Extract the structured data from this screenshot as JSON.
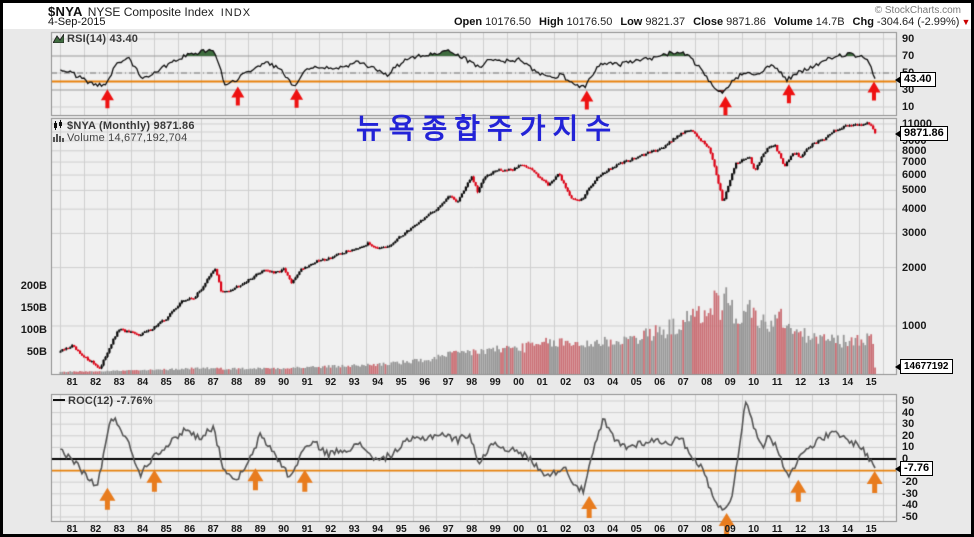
{
  "header": {
    "symbol": "$NYA",
    "name": "NYSE Composite Index",
    "exchange": "INDX",
    "credit": "© StockCharts.com",
    "date": "4-Sep-2015",
    "quote": [
      {
        "label": "Open",
        "value": "10176.50"
      },
      {
        "label": "High",
        "value": "10176.50"
      },
      {
        "label": "Low",
        "value": "9821.37"
      },
      {
        "label": "Close",
        "value": "9871.86"
      },
      {
        "label": "Volume",
        "value": "14.7B"
      },
      {
        "label": "Chg",
        "value": "-304.64 (-2.99%)"
      }
    ],
    "chg_marker": "▼"
  },
  "annotation": {
    "text": "뉴욕종합주가지수"
  },
  "rsi_panel": {
    "label": "RSI(14) 43.40",
    "value_box": "43.40"
  },
  "price_panel": {
    "label": "$NYA (Monthly) 9871.86",
    "volume_label": "Volume 14,677,192,704",
    "value_box": "9871.86",
    "volume_box": "14677192"
  },
  "roc_panel": {
    "label": "ROC(12) -7.76%",
    "value_box": "-7.76"
  },
  "chart_data": {
    "type": "multi-panel-stock-chart",
    "x": {
      "start": 1981.0,
      "end": 2015.71,
      "tick_labels": [
        "81",
        "82",
        "83",
        "84",
        "85",
        "86",
        "87",
        "88",
        "89",
        "90",
        "91",
        "92",
        "93",
        "94",
        "95",
        "96",
        "97",
        "98",
        "99",
        "00",
        "01",
        "02",
        "03",
        "04",
        "05",
        "06",
        "07",
        "08",
        "09",
        "10",
        "11",
        "12",
        "13",
        "14",
        "15"
      ]
    },
    "colors": {
      "candle_up": "#0a0a0a",
      "candle_down": "#dd0014",
      "vol_up": "#989898",
      "vol_down": "#cb7076",
      "rsi_line": "#111111",
      "rsi_fill_high": "#3f6d3f",
      "rsi_fill_low": "#7a2a2a",
      "roc_line": "#555555",
      "zero_line": "#000000",
      "signal_line": "#e8820c",
      "grid": "#cfcfcf",
      "grid_strong": "#9a9a9a",
      "arrow_red": "#ee1111",
      "arrow_orange": "#e87c1e",
      "panel_bg": "#f0f0f0",
      "panel_border": "#8f8f8f",
      "stage_bg": "#e9e9e9"
    },
    "panels": [
      {
        "id": "rsi",
        "type": "line",
        "name": "RSI(14)",
        "last": 43.4,
        "ylim": [
          0,
          100
        ],
        "yticks": [
          90,
          70,
          50,
          30,
          10
        ],
        "overbought": 70,
        "oversold": 30,
        "midline_dashdot": 50,
        "signal_line": 40,
        "anchors": [
          [
            1981.0,
            55
          ],
          [
            1981.6,
            48
          ],
          [
            1982.1,
            40
          ],
          [
            1982.9,
            34
          ],
          [
            1983.4,
            62
          ],
          [
            1983.9,
            68
          ],
          [
            1984.5,
            44
          ],
          [
            1985.1,
            52
          ],
          [
            1985.9,
            66
          ],
          [
            1986.5,
            72
          ],
          [
            1987.2,
            76
          ],
          [
            1987.6,
            74
          ],
          [
            1988.0,
            36
          ],
          [
            1988.5,
            42
          ],
          [
            1989.3,
            58
          ],
          [
            1989.9,
            62
          ],
          [
            1990.4,
            52
          ],
          [
            1990.95,
            35
          ],
          [
            1991.4,
            54
          ],
          [
            1992.0,
            58
          ],
          [
            1992.8,
            55
          ],
          [
            1993.6,
            62
          ],
          [
            1994.3,
            57
          ],
          [
            1994.9,
            48
          ],
          [
            1995.6,
            64
          ],
          [
            1996.3,
            70
          ],
          [
            1997.0,
            74
          ],
          [
            1997.6,
            76
          ],
          [
            1998.0,
            70
          ],
          [
            1998.8,
            57
          ],
          [
            1999.3,
            66
          ],
          [
            2000.0,
            64
          ],
          [
            2000.6,
            66
          ],
          [
            2001.2,
            52
          ],
          [
            2001.8,
            44
          ],
          [
            2002.3,
            48
          ],
          [
            2002.9,
            36
          ],
          [
            2003.3,
            34
          ],
          [
            2004.0,
            62
          ],
          [
            2004.8,
            60
          ],
          [
            2005.5,
            64
          ],
          [
            2006.3,
            68
          ],
          [
            2007.0,
            74
          ],
          [
            2007.7,
            72
          ],
          [
            2008.3,
            52
          ],
          [
            2008.8,
            32
          ],
          [
            2009.15,
            25
          ],
          [
            2009.6,
            40
          ],
          [
            2010.1,
            52
          ],
          [
            2010.6,
            48
          ],
          [
            2011.1,
            58
          ],
          [
            2011.5,
            56
          ],
          [
            2011.9,
            42
          ],
          [
            2012.4,
            50
          ],
          [
            2012.9,
            56
          ],
          [
            2013.5,
            64
          ],
          [
            2014.0,
            70
          ],
          [
            2014.6,
            72
          ],
          [
            2015.1,
            68
          ],
          [
            2015.4,
            62
          ],
          [
            2015.67,
            43.4
          ]
        ],
        "arrow_years": [
          1983.0,
          1988.55,
          1991.05,
          2003.4,
          2009.3,
          2012.0,
          2015.62
        ]
      },
      {
        "id": "price",
        "type": "candlestick",
        "name": "$NYA Monthly",
        "last": 9871.86,
        "scale": "log",
        "yticks": [
          11000,
          9000,
          8000,
          7000,
          6000,
          5000,
          4000,
          3000,
          2000,
          1000
        ],
        "anchors": [
          [
            1981.0,
            740
          ],
          [
            1981.5,
            790
          ],
          [
            1981.9,
            700
          ],
          [
            1982.3,
            660
          ],
          [
            1982.7,
            600
          ],
          [
            1983.5,
            960
          ],
          [
            1984.3,
            900
          ],
          [
            1984.8,
            950
          ],
          [
            1985.5,
            1090
          ],
          [
            1986.2,
            1350
          ],
          [
            1986.7,
            1400
          ],
          [
            1987.0,
            1550
          ],
          [
            1987.6,
            1980
          ],
          [
            1987.85,
            1480
          ],
          [
            1988.3,
            1550
          ],
          [
            1989.0,
            1720
          ],
          [
            1989.7,
            1960
          ],
          [
            1990.1,
            1870
          ],
          [
            1990.5,
            1960
          ],
          [
            1990.85,
            1650
          ],
          [
            1991.2,
            1950
          ],
          [
            1991.9,
            2150
          ],
          [
            1992.5,
            2250
          ],
          [
            1993.5,
            2500
          ],
          [
            1994.1,
            2660
          ],
          [
            1994.6,
            2500
          ],
          [
            1995.0,
            2570
          ],
          [
            1996.0,
            3250
          ],
          [
            1996.9,
            3900
          ],
          [
            1997.6,
            4700
          ],
          [
            1997.9,
            4350
          ],
          [
            1998.5,
            5850
          ],
          [
            1998.75,
            4900
          ],
          [
            1999.1,
            6000
          ],
          [
            1999.6,
            6350
          ],
          [
            2000.2,
            6350
          ],
          [
            2000.65,
            6850
          ],
          [
            2001.1,
            6300
          ],
          [
            2001.75,
            5350
          ],
          [
            2002.2,
            6050
          ],
          [
            2002.75,
            4500
          ],
          [
            2003.2,
            4480
          ],
          [
            2003.9,
            5950
          ],
          [
            2004.9,
            6950
          ],
          [
            2005.8,
            7600
          ],
          [
            2006.7,
            8400
          ],
          [
            2007.4,
            9850
          ],
          [
            2007.8,
            10250
          ],
          [
            2008.2,
            9200
          ],
          [
            2008.6,
            8300
          ],
          [
            2008.95,
            5700
          ],
          [
            2009.2,
            4300
          ],
          [
            2009.75,
            6900
          ],
          [
            2010.3,
            7450
          ],
          [
            2010.55,
            6350
          ],
          [
            2011.05,
            8100
          ],
          [
            2011.4,
            8550
          ],
          [
            2011.8,
            6600
          ],
          [
            2012.2,
            7850
          ],
          [
            2012.5,
            7450
          ],
          [
            2013.0,
            8650
          ],
          [
            2013.5,
            9200
          ],
          [
            2014.0,
            10300
          ],
          [
            2014.7,
            10950
          ],
          [
            2015.15,
            10900
          ],
          [
            2015.4,
            11150
          ],
          [
            2015.67,
            9871.86
          ]
        ]
      },
      {
        "id": "volume",
        "type": "bar",
        "name": "Volume",
        "last_billions": 14.7,
        "yticks_billions": [
          "200B",
          "150B",
          "100B",
          "50B"
        ],
        "ytick_values": [
          200,
          150,
          100,
          50
        ],
        "anchors_billions": [
          [
            1981,
            5
          ],
          [
            1983,
            7
          ],
          [
            1985,
            9
          ],
          [
            1987,
            14
          ],
          [
            1988,
            12
          ],
          [
            1990,
            13
          ],
          [
            1992,
            16
          ],
          [
            1994,
            20
          ],
          [
            1996,
            28
          ],
          [
            1997,
            36
          ],
          [
            1998,
            48
          ],
          [
            1999,
            52
          ],
          [
            2000,
            58
          ],
          [
            2001,
            62
          ],
          [
            2002,
            72
          ],
          [
            2003,
            68
          ],
          [
            2004,
            72
          ],
          [
            2005,
            78
          ],
          [
            2006,
            88
          ],
          [
            2007,
            105
          ],
          [
            2007.8,
            125
          ],
          [
            2008.5,
            140
          ],
          [
            2008.8,
            168
          ],
          [
            2009.1,
            150
          ],
          [
            2009.3,
            172
          ],
          [
            2009.7,
            135
          ],
          [
            2010.1,
            130
          ],
          [
            2010.4,
            152
          ],
          [
            2010.8,
            118
          ],
          [
            2011.2,
            112
          ],
          [
            2011.7,
            128
          ],
          [
            2012.1,
            98
          ],
          [
            2012.6,
            88
          ],
          [
            2013.1,
            82
          ],
          [
            2013.7,
            78
          ],
          [
            2014.2,
            75
          ],
          [
            2014.8,
            72
          ],
          [
            2015.2,
            80
          ],
          [
            2015.5,
            90
          ],
          [
            2015.6,
            75
          ]
        ]
      },
      {
        "id": "roc",
        "type": "line",
        "name": "ROC(12)",
        "last": -7.76,
        "ylim": [
          -55,
          56
        ],
        "yticks": [
          50,
          40,
          30,
          20,
          10,
          0,
          -20,
          -30,
          -40,
          -50
        ],
        "zero_line": 0,
        "signal_line": -10,
        "anchors": [
          [
            1981.0,
            8
          ],
          [
            1981.5,
            0
          ],
          [
            1982.0,
            -12
          ],
          [
            1982.55,
            -25
          ],
          [
            1983.1,
            30
          ],
          [
            1983.3,
            36
          ],
          [
            1983.8,
            18
          ],
          [
            1984.4,
            -13
          ],
          [
            1985.0,
            4
          ],
          [
            1985.7,
            14
          ],
          [
            1986.3,
            26
          ],
          [
            1986.9,
            18
          ],
          [
            1987.5,
            28
          ],
          [
            1987.9,
            -5
          ],
          [
            1988.35,
            -20
          ],
          [
            1988.9,
            -8
          ],
          [
            1989.5,
            20
          ],
          [
            1990.0,
            8
          ],
          [
            1990.8,
            -17
          ],
          [
            1991.3,
            8
          ],
          [
            1991.8,
            14
          ],
          [
            1992.4,
            4
          ],
          [
            1993.0,
            8
          ],
          [
            1993.8,
            12
          ],
          [
            1994.5,
            -2
          ],
          [
            1995.1,
            4
          ],
          [
            1995.8,
            16
          ],
          [
            1996.5,
            18
          ],
          [
            1997.2,
            22
          ],
          [
            1997.9,
            16
          ],
          [
            1998.4,
            22
          ],
          [
            1998.85,
            -6
          ],
          [
            1999.3,
            14
          ],
          [
            1999.9,
            10
          ],
          [
            2000.4,
            6
          ],
          [
            2000.9,
            2
          ],
          [
            2001.4,
            -10
          ],
          [
            2001.9,
            -14
          ],
          [
            2002.4,
            -6
          ],
          [
            2002.9,
            -22
          ],
          [
            2003.25,
            -28
          ],
          [
            2003.7,
            8
          ],
          [
            2004.1,
            34
          ],
          [
            2004.6,
            16
          ],
          [
            2005.1,
            10
          ],
          [
            2005.7,
            14
          ],
          [
            2006.3,
            16
          ],
          [
            2006.9,
            14
          ],
          [
            2007.4,
            18
          ],
          [
            2007.9,
            2
          ],
          [
            2008.3,
            -8
          ],
          [
            2008.8,
            -32
          ],
          [
            2009.2,
            -47
          ],
          [
            2009.6,
            -30
          ],
          [
            2009.95,
            20
          ],
          [
            2010.15,
            50
          ],
          [
            2010.5,
            28
          ],
          [
            2010.9,
            12
          ],
          [
            2011.2,
            20
          ],
          [
            2011.6,
            4
          ],
          [
            2011.95,
            -14
          ],
          [
            2012.3,
            -4
          ],
          [
            2012.7,
            8
          ],
          [
            2013.1,
            14
          ],
          [
            2013.6,
            20
          ],
          [
            2014.0,
            22
          ],
          [
            2014.5,
            16
          ],
          [
            2015.0,
            12
          ],
          [
            2015.3,
            4
          ],
          [
            2015.55,
            -4
          ],
          [
            2015.67,
            -7.76
          ]
        ],
        "arrow_years": [
          1983.0,
          1985.0,
          1989.3,
          1991.4,
          2003.5,
          2009.35,
          2012.4,
          2015.65
        ]
      }
    ]
  }
}
